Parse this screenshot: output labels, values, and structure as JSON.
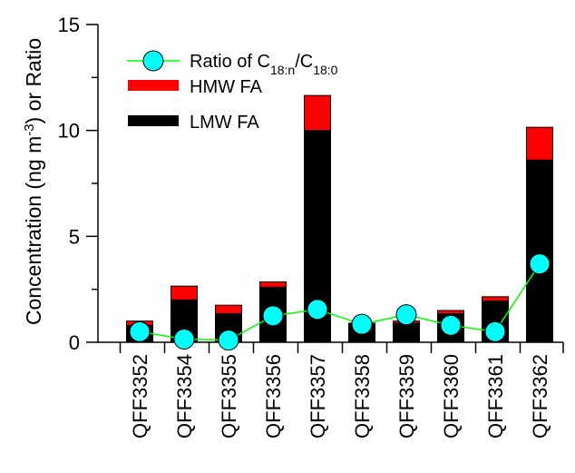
{
  "chart_data": {
    "type": "bar",
    "stacked": true,
    "title": "",
    "xlabel": "",
    "ylabel": {
      "prefix": "Concentration (ng m",
      "superscript": "-3",
      "suffix": ") or Ratio"
    },
    "ylim": [
      0,
      15
    ],
    "yticks": [
      0,
      5,
      10,
      15
    ],
    "grid": false,
    "legend_placement": "top-left",
    "categories": [
      "QFF3352",
      "QFF3354",
      "QFF3355",
      "QFF3356",
      "QFF3357",
      "QFF3358",
      "QFF3359",
      "QFF3360",
      "QFF3361",
      "QFF3362"
    ],
    "series": [
      {
        "name": "LMW FA",
        "kind": "bar",
        "color": "#000000",
        "values": [
          0.8,
          2.0,
          1.35,
          2.6,
          10.0,
          0.85,
          0.9,
          1.35,
          1.95,
          8.6
        ]
      },
      {
        "name": "HMW FA",
        "kind": "bar",
        "color": "#ff0000",
        "values": [
          0.2,
          0.65,
          0.4,
          0.25,
          1.65,
          0.05,
          0.1,
          0.15,
          0.2,
          1.55
        ]
      },
      {
        "name_parts": {
          "prefix": "Ratio of C",
          "sub1": "18:n",
          "mid": "/C",
          "sub2": "18:0"
        },
        "kind": "line",
        "color": "#00ff00",
        "marker_color": "#00ffff",
        "values": [
          0.5,
          0.15,
          0.1,
          1.25,
          1.55,
          0.85,
          1.3,
          0.8,
          0.5,
          3.7
        ]
      }
    ]
  }
}
